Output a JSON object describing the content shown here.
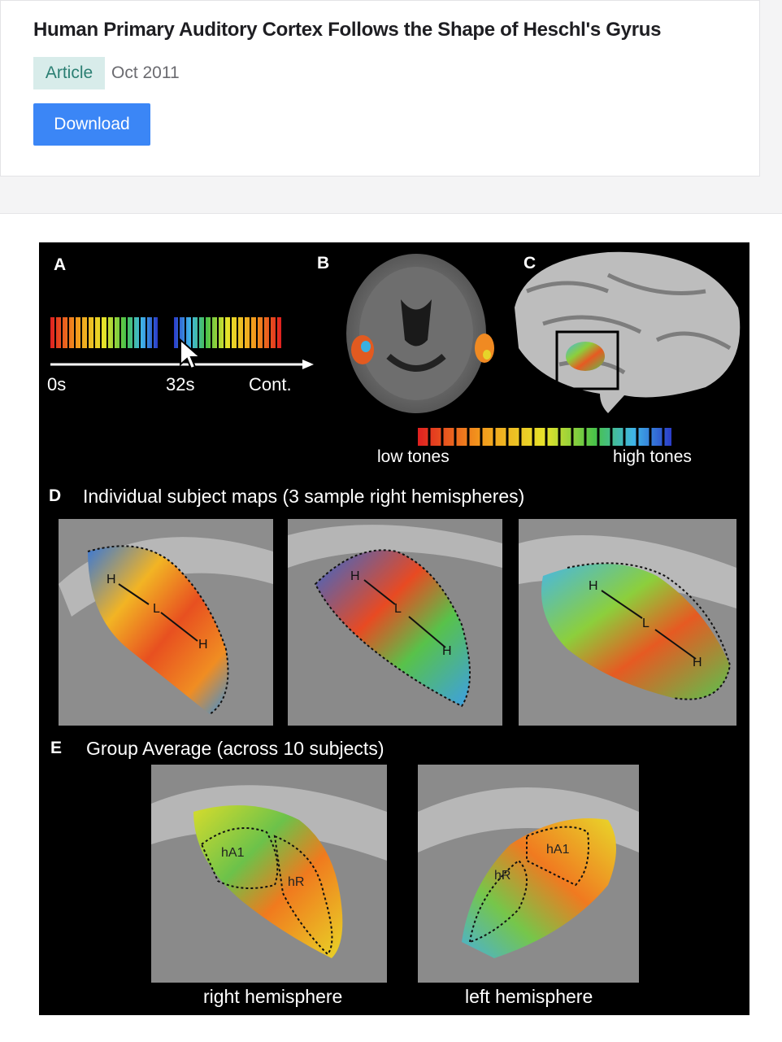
{
  "card": {
    "title": "Human Primary Auditory Cortex Follows the Shape of Heschl's Gyrus",
    "badge": "Article",
    "date": "Oct 2011",
    "download_label": "Download"
  },
  "figure": {
    "panel_a": {
      "letter": "A",
      "t0": "0s",
      "t1": "32s",
      "t2": "Cont."
    },
    "panel_b": {
      "letter": "B"
    },
    "panel_c": {
      "letter": "C"
    },
    "scale": {
      "low": "low tones",
      "high": "high tones"
    },
    "panel_d": {
      "letter": "D",
      "caption": "Individual subject maps (3 sample right hemispheres)",
      "marks": [
        "H",
        "L",
        "H"
      ]
    },
    "panel_e": {
      "letter": "E",
      "caption": "Group Average (across 10 subjects)",
      "right": "right hemisphere",
      "left": "left hemisphere",
      "ha1": "hA1",
      "hr": "hR"
    }
  }
}
